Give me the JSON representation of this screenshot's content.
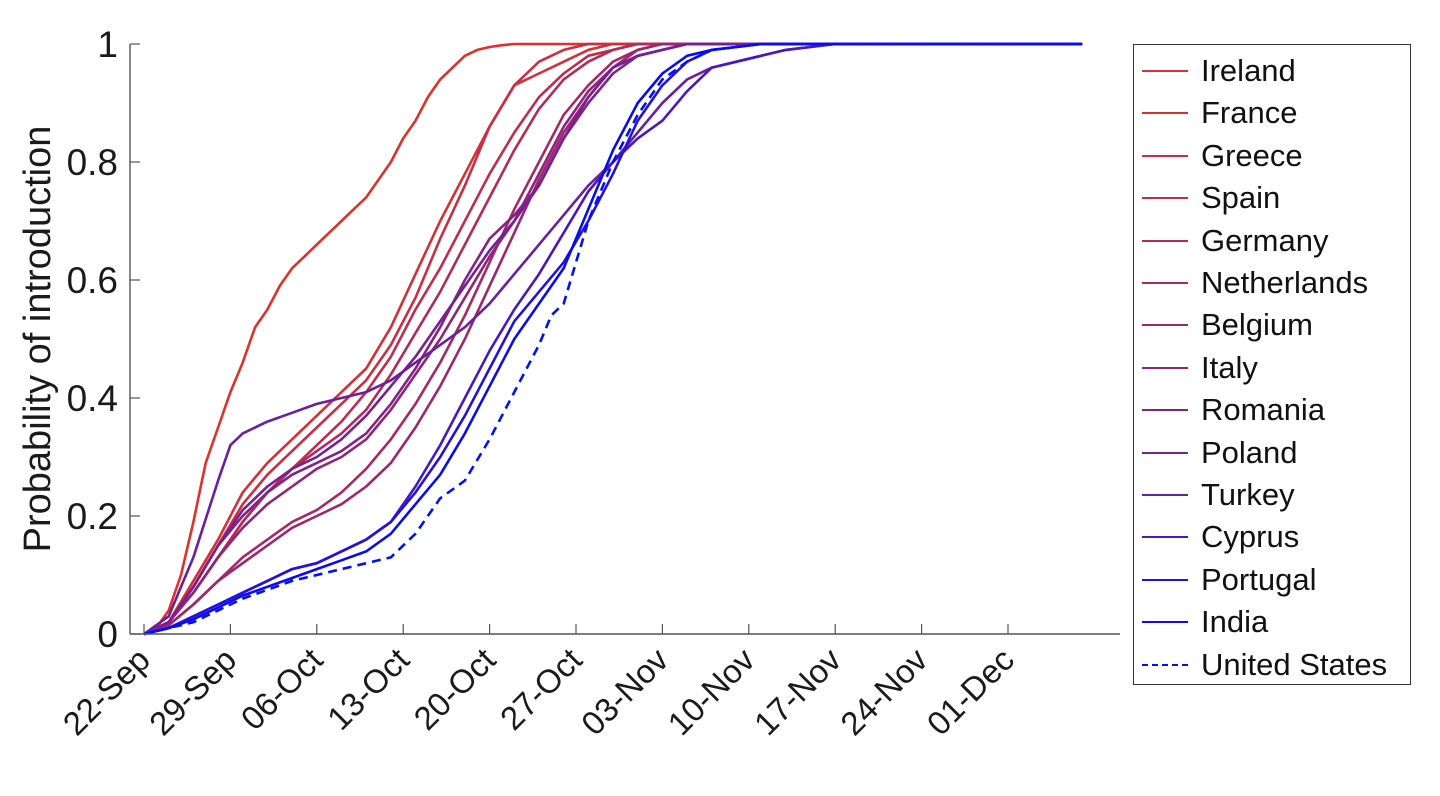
{
  "chart_data": {
    "type": "line",
    "title": "",
    "xlabel": "",
    "ylabel": "Probability of introduction",
    "ylim": [
      0,
      1
    ],
    "yticks": [
      "0",
      "0.2",
      "0.4",
      "0.6",
      "0.8",
      "1"
    ],
    "ytick_values": [
      0,
      0.2,
      0.4,
      0.6,
      0.8,
      1
    ],
    "xtick_labels": [
      "22-Sep",
      "29-Sep",
      "06-Oct",
      "13-Oct",
      "20-Oct",
      "27-Oct",
      "03-Nov",
      "10-Nov",
      "17-Nov",
      "24-Nov",
      "01-Dec"
    ],
    "xtick_days": [
      0,
      7,
      14,
      21,
      28,
      35,
      42,
      49,
      56,
      63,
      70
    ],
    "x_unit": "days since 22-Sep",
    "xlim": [
      -1.2,
      79.5
    ],
    "grid": false,
    "legend_position": "outside-right",
    "series": [
      {
        "name": "Ireland",
        "color": "#e0302a",
        "dash": false,
        "x": [
          0,
          1,
          2,
          3,
          4,
          5,
          6,
          7,
          8,
          9,
          10,
          11,
          12,
          13,
          14,
          15,
          16,
          17,
          18,
          19,
          20,
          21,
          22,
          23,
          24,
          25,
          26,
          27,
          28,
          29,
          30,
          32,
          34,
          76
        ],
        "y": [
          0,
          0.01,
          0.04,
          0.1,
          0.19,
          0.29,
          0.35,
          0.41,
          0.46,
          0.52,
          0.55,
          0.59,
          0.62,
          0.64,
          0.66,
          0.68,
          0.7,
          0.72,
          0.74,
          0.77,
          0.8,
          0.84,
          0.87,
          0.91,
          0.94,
          0.96,
          0.98,
          0.99,
          0.995,
          0.998,
          1,
          1,
          1,
          1
        ]
      },
      {
        "name": "France",
        "color": "#d82f36",
        "dash": false,
        "x": [
          0,
          2,
          4,
          6,
          8,
          10,
          12,
          14,
          16,
          18,
          20,
          22,
          24,
          26,
          28,
          30,
          32,
          34,
          36,
          38,
          76
        ],
        "y": [
          0,
          0.02,
          0.09,
          0.16,
          0.24,
          0.29,
          0.33,
          0.37,
          0.41,
          0.45,
          0.52,
          0.61,
          0.7,
          0.78,
          0.86,
          0.93,
          0.95,
          0.97,
          0.99,
          1,
          1
        ]
      },
      {
        "name": "Greece",
        "color": "#cc2e41",
        "dash": false,
        "x": [
          0,
          2,
          4,
          6,
          8,
          10,
          12,
          14,
          16,
          18,
          20,
          22,
          24,
          26,
          28,
          30,
          32,
          34,
          36,
          76
        ],
        "y": [
          0,
          0.02,
          0.08,
          0.15,
          0.22,
          0.27,
          0.31,
          0.35,
          0.39,
          0.43,
          0.49,
          0.57,
          0.67,
          0.76,
          0.86,
          0.93,
          0.97,
          0.99,
          1,
          1
        ]
      },
      {
        "name": "Spain",
        "color": "#c02c4d",
        "dash": false,
        "x": [
          0,
          2,
          4,
          6,
          8,
          10,
          12,
          14,
          16,
          18,
          20,
          22,
          24,
          26,
          28,
          30,
          32,
          34,
          36,
          38,
          40,
          76
        ],
        "y": [
          0,
          0.02,
          0.07,
          0.13,
          0.19,
          0.24,
          0.28,
          0.32,
          0.36,
          0.41,
          0.47,
          0.55,
          0.62,
          0.7,
          0.78,
          0.85,
          0.91,
          0.95,
          0.98,
          0.99,
          1,
          1
        ]
      },
      {
        "name": "Germany",
        "color": "#b42a58",
        "dash": false,
        "x": [
          0,
          2,
          4,
          6,
          8,
          10,
          12,
          14,
          16,
          18,
          20,
          22,
          24,
          26,
          28,
          30,
          32,
          34,
          36,
          38,
          40,
          76
        ],
        "y": [
          0,
          0.02,
          0.07,
          0.13,
          0.19,
          0.24,
          0.28,
          0.31,
          0.34,
          0.38,
          0.44,
          0.51,
          0.58,
          0.66,
          0.74,
          0.82,
          0.89,
          0.94,
          0.97,
          0.99,
          1,
          1
        ]
      },
      {
        "name": "Netherlands",
        "color": "#a82864",
        "dash": false,
        "x": [
          0,
          2,
          4,
          6,
          8,
          10,
          12,
          14,
          16,
          18,
          20,
          22,
          24,
          26,
          28,
          30,
          32,
          34,
          36,
          38,
          40,
          42,
          76
        ],
        "y": [
          0,
          0.015,
          0.05,
          0.09,
          0.13,
          0.16,
          0.19,
          0.21,
          0.24,
          0.28,
          0.33,
          0.39,
          0.46,
          0.54,
          0.63,
          0.72,
          0.8,
          0.88,
          0.93,
          0.97,
          0.99,
          1,
          1
        ]
      },
      {
        "name": "Belgium",
        "color": "#9c2670",
        "dash": false,
        "x": [
          0,
          2,
          4,
          6,
          8,
          10,
          12,
          14,
          16,
          18,
          20,
          22,
          24,
          26,
          28,
          30,
          32,
          34,
          36,
          38,
          40,
          42,
          76
        ],
        "y": [
          0,
          0.015,
          0.05,
          0.09,
          0.12,
          0.15,
          0.18,
          0.2,
          0.22,
          0.25,
          0.29,
          0.35,
          0.42,
          0.5,
          0.59,
          0.68,
          0.77,
          0.85,
          0.91,
          0.96,
          0.99,
          1,
          1
        ]
      },
      {
        "name": "Italy",
        "color": "#90247b",
        "dash": false,
        "x": [
          0,
          2,
          4,
          6,
          8,
          10,
          12,
          14,
          16,
          18,
          20,
          22,
          24,
          26,
          28,
          30,
          32,
          34,
          36,
          38,
          40,
          42,
          44,
          76
        ],
        "y": [
          0,
          0.02,
          0.07,
          0.13,
          0.18,
          0.22,
          0.25,
          0.28,
          0.3,
          0.33,
          0.38,
          0.44,
          0.5,
          0.57,
          0.64,
          0.7,
          0.78,
          0.86,
          0.92,
          0.96,
          0.98,
          0.99,
          1,
          1
        ]
      },
      {
        "name": "Romania",
        "color": "#842287",
        "dash": false,
        "x": [
          0,
          2,
          4,
          6,
          8,
          10,
          12,
          14,
          16,
          18,
          20,
          22,
          24,
          26,
          28,
          30,
          32,
          34,
          36,
          38,
          40,
          42,
          44,
          76
        ],
        "y": [
          0,
          0.02,
          0.08,
          0.15,
          0.2,
          0.24,
          0.27,
          0.29,
          0.31,
          0.34,
          0.39,
          0.45,
          0.52,
          0.6,
          0.67,
          0.71,
          0.76,
          0.84,
          0.9,
          0.95,
          0.98,
          0.99,
          1,
          1
        ]
      },
      {
        "name": "Poland",
        "color": "#782093",
        "dash": false,
        "x": [
          0,
          2,
          4,
          6,
          8,
          10,
          12,
          14,
          16,
          18,
          20,
          22,
          24,
          26,
          28,
          30,
          32,
          34,
          36,
          38,
          40,
          42,
          44,
          76
        ],
        "y": [
          0,
          0.02,
          0.08,
          0.15,
          0.21,
          0.25,
          0.28,
          0.3,
          0.33,
          0.37,
          0.42,
          0.47,
          0.53,
          0.59,
          0.65,
          0.7,
          0.76,
          0.84,
          0.91,
          0.96,
          0.98,
          0.99,
          1,
          1
        ]
      },
      {
        "name": "Turkey",
        "color": "#6c1e9f",
        "dash": false,
        "x": [
          0,
          2,
          4,
          6,
          7,
          8,
          10,
          12,
          14,
          16,
          18,
          20,
          22,
          24,
          26,
          28,
          30,
          32,
          34,
          36,
          38,
          40,
          42,
          44,
          46,
          48,
          50,
          52,
          54,
          56,
          58,
          76
        ],
        "y": [
          0,
          0.03,
          0.13,
          0.26,
          0.32,
          0.34,
          0.36,
          0.375,
          0.39,
          0.4,
          0.41,
          0.43,
          0.46,
          0.49,
          0.52,
          0.56,
          0.61,
          0.66,
          0.71,
          0.76,
          0.8,
          0.85,
          0.9,
          0.94,
          0.96,
          0.97,
          0.98,
          0.99,
          0.995,
          1,
          1,
          1
        ]
      },
      {
        "name": "Cyprus",
        "color": "#4a18c0",
        "dash": false,
        "x": [
          0,
          2,
          4,
          6,
          8,
          10,
          12,
          14,
          16,
          18,
          20,
          22,
          24,
          26,
          28,
          30,
          32,
          34,
          36,
          38,
          40,
          42,
          44,
          46,
          48,
          50,
          52,
          54,
          56,
          76
        ],
        "y": [
          0,
          0.01,
          0.03,
          0.05,
          0.07,
          0.09,
          0.11,
          0.12,
          0.14,
          0.16,
          0.19,
          0.25,
          0.32,
          0.4,
          0.48,
          0.55,
          0.61,
          0.68,
          0.75,
          0.8,
          0.84,
          0.87,
          0.92,
          0.96,
          0.97,
          0.98,
          0.99,
          0.995,
          1,
          1
        ]
      },
      {
        "name": "Portugal",
        "color": "#2410e0",
        "dash": false,
        "x": [
          0,
          2,
          4,
          6,
          8,
          10,
          12,
          14,
          16,
          18,
          20,
          22,
          24,
          26,
          28,
          30,
          32,
          34,
          36,
          38,
          40,
          42,
          44,
          46,
          48,
          50,
          76
        ],
        "y": [
          0,
          0.01,
          0.03,
          0.05,
          0.07,
          0.09,
          0.11,
          0.12,
          0.14,
          0.16,
          0.19,
          0.24,
          0.3,
          0.37,
          0.45,
          0.53,
          0.58,
          0.63,
          0.7,
          0.78,
          0.87,
          0.93,
          0.97,
          0.99,
          0.995,
          1,
          1
        ]
      },
      {
        "name": "India",
        "color": "#0a0cf0",
        "dash": false,
        "x": [
          0,
          2,
          4,
          6,
          8,
          10,
          12,
          14,
          16,
          18,
          20,
          22,
          24,
          26,
          28,
          30,
          32,
          34,
          36,
          38,
          40,
          42,
          44,
          46,
          48,
          50,
          76
        ],
        "y": [
          0,
          0.01,
          0.025,
          0.045,
          0.065,
          0.08,
          0.095,
          0.11,
          0.125,
          0.14,
          0.17,
          0.22,
          0.27,
          0.34,
          0.42,
          0.5,
          0.56,
          0.62,
          0.72,
          0.82,
          0.9,
          0.95,
          0.98,
          0.99,
          0.995,
          1,
          1
        ]
      },
      {
        "name": "United States",
        "color": "#0010ff",
        "dash": true,
        "x": [
          0,
          2,
          4,
          6,
          8,
          10,
          12,
          14,
          16,
          18,
          20,
          22,
          24,
          26,
          28,
          30,
          32,
          33,
          34,
          36,
          38,
          40,
          42,
          44,
          46,
          48,
          50,
          76
        ],
        "y": [
          0,
          0.01,
          0.02,
          0.04,
          0.06,
          0.075,
          0.09,
          0.1,
          0.11,
          0.12,
          0.13,
          0.17,
          0.23,
          0.26,
          0.33,
          0.41,
          0.49,
          0.54,
          0.56,
          0.7,
          0.8,
          0.88,
          0.94,
          0.97,
          0.99,
          0.995,
          1,
          1
        ]
      }
    ]
  }
}
